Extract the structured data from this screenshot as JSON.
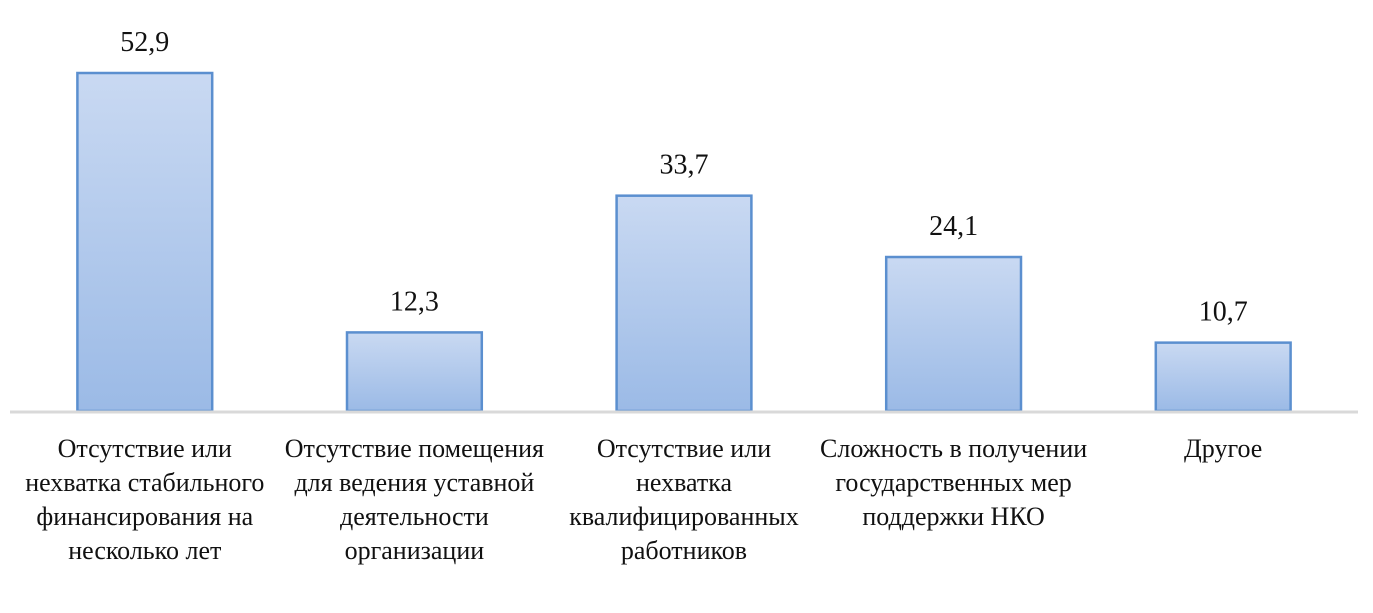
{
  "chart_data": {
    "type": "bar",
    "categories": [
      "Отсутствие или нехватка стабильного финансирования на несколько лет",
      "Отсутствие помещения для ведения уставной деятельности организации",
      "Отсутствие или нехватка квалифицированных работников",
      "Сложность в получении государственных мер поддержки НКО",
      "Другое"
    ],
    "values": [
      52.9,
      12.3,
      33.7,
      24.1,
      10.7
    ],
    "value_labels": [
      "52,9",
      "12,3",
      "33,7",
      "24,1",
      "10,7"
    ],
    "color": "#a9c3ea"
  }
}
